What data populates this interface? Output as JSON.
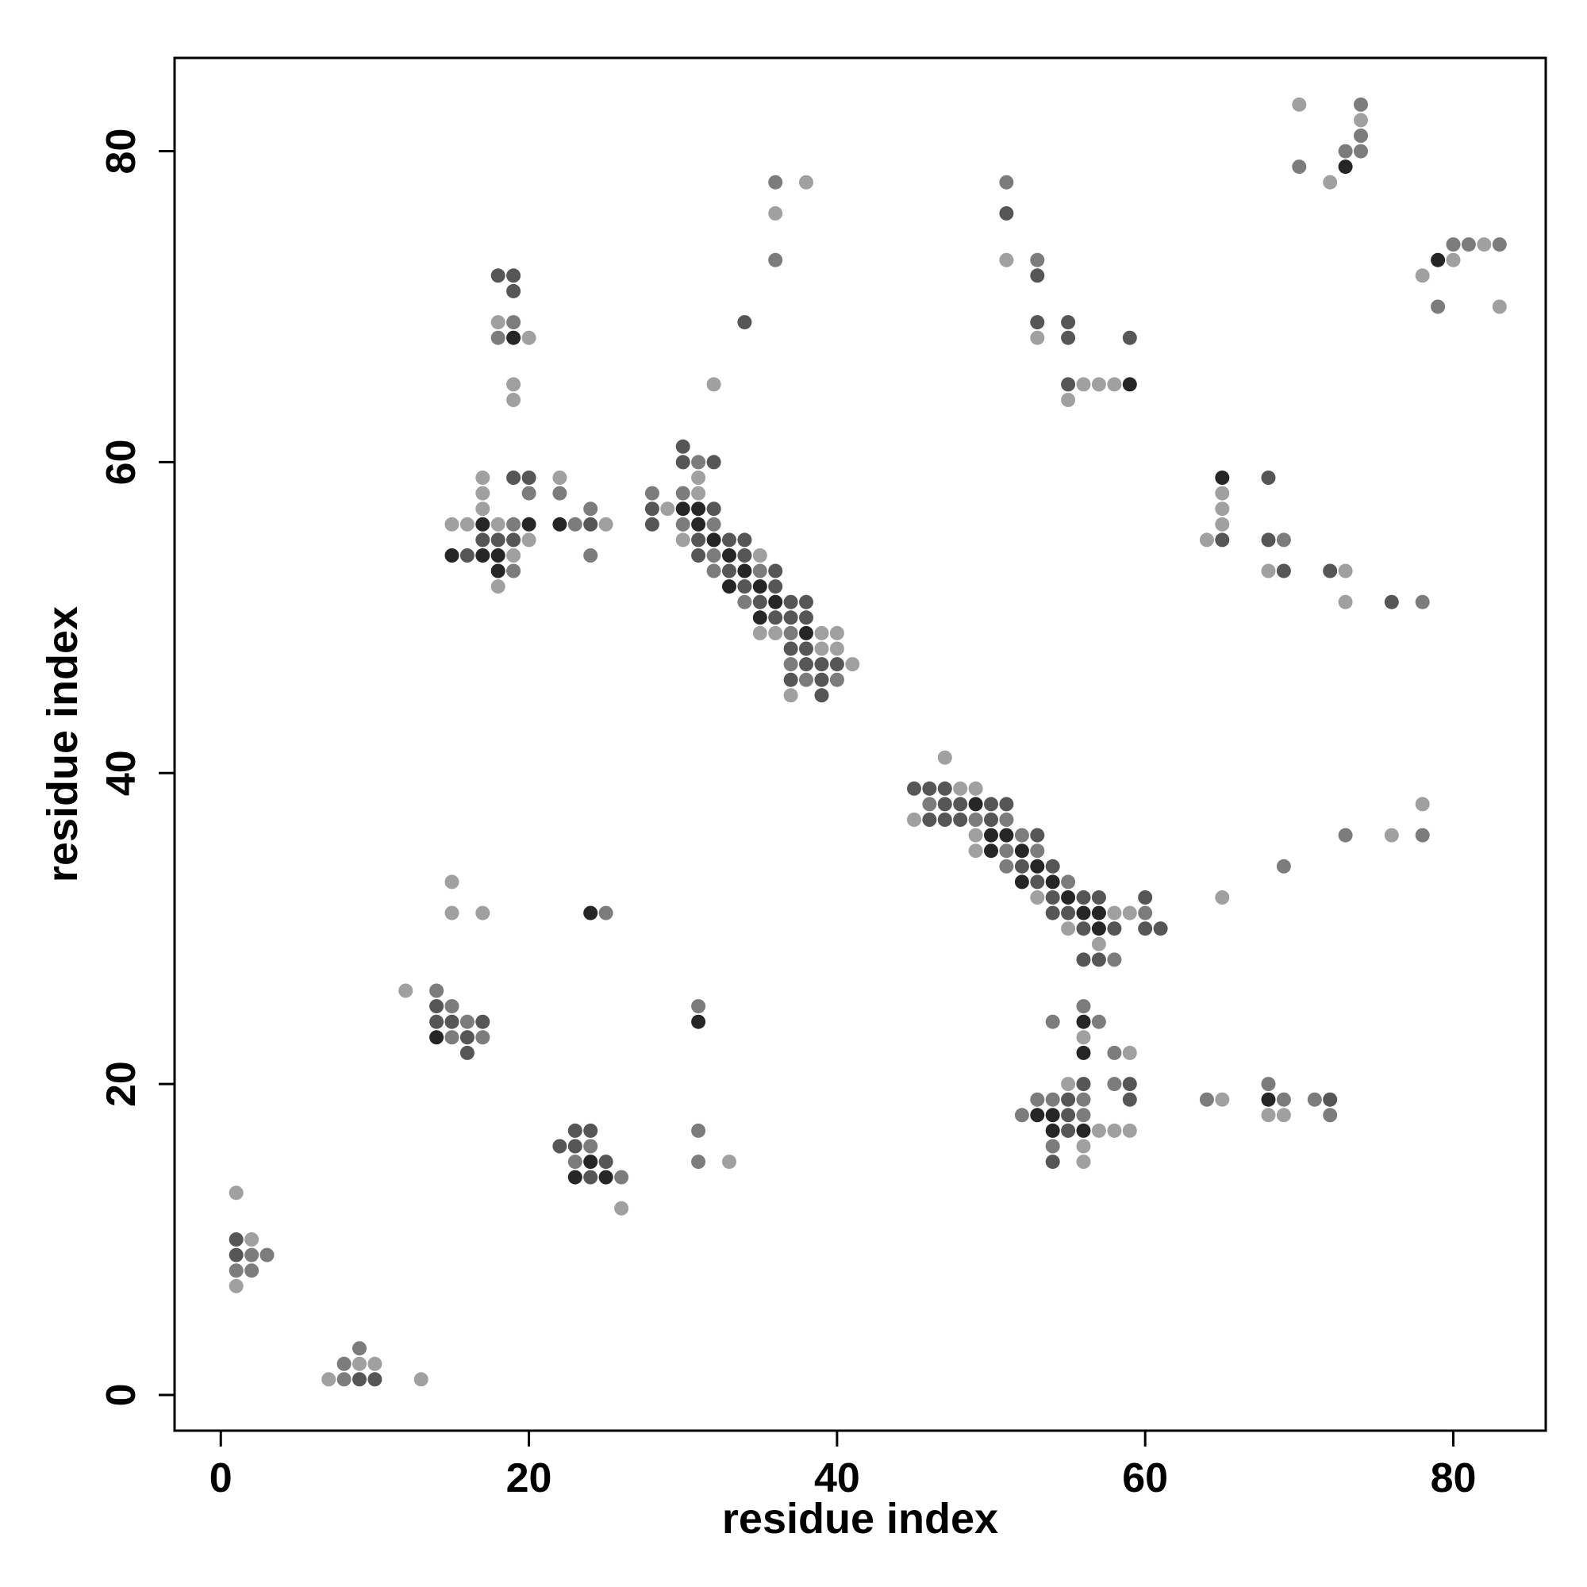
{
  "chart_data": {
    "type": "scatter",
    "title": "",
    "xlabel": "residue index",
    "ylabel": "residue index",
    "xlim": [
      -3,
      86
    ],
    "ylim": [
      -2.3,
      86
    ],
    "xticks": [
      0,
      20,
      40,
      60,
      80
    ],
    "yticks": [
      0,
      20,
      40,
      60,
      80
    ],
    "grid": false,
    "legend": "none",
    "shades": {
      "1": "#a0a0a0",
      "2": "#7c7c7c",
      "3": "#565656",
      "4": "#262626"
    },
    "points": [
      [
        1,
        13,
        1
      ],
      [
        1,
        10,
        3
      ],
      [
        2,
        10,
        1
      ],
      [
        1,
        9,
        3
      ],
      [
        2,
        9,
        2
      ],
      [
        3,
        9,
        2
      ],
      [
        1,
        8,
        2
      ],
      [
        2,
        8,
        2
      ],
      [
        1,
        7,
        1
      ],
      [
        9,
        3,
        2
      ],
      [
        8,
        2,
        2
      ],
      [
        9,
        2,
        1
      ],
      [
        10,
        2,
        1
      ],
      [
        7,
        1,
        1
      ],
      [
        8,
        1,
        2
      ],
      [
        9,
        1,
        3
      ],
      [
        10,
        1,
        3
      ],
      [
        13,
        1,
        1
      ],
      [
        12,
        26,
        1
      ],
      [
        14,
        26,
        2
      ],
      [
        14,
        25,
        3
      ],
      [
        15,
        25,
        2
      ],
      [
        14,
        24,
        3
      ],
      [
        15,
        24,
        3
      ],
      [
        16,
        24,
        2
      ],
      [
        17,
        24,
        3
      ],
      [
        14,
        23,
        4
      ],
      [
        15,
        23,
        2
      ],
      [
        16,
        23,
        3
      ],
      [
        17,
        23,
        2
      ],
      [
        16,
        22,
        3
      ],
      [
        15,
        33,
        1
      ],
      [
        15,
        31,
        1
      ],
      [
        17,
        31,
        1
      ],
      [
        24,
        31,
        4
      ],
      [
        25,
        31,
        2
      ],
      [
        31,
        25,
        2
      ],
      [
        31,
        24,
        4
      ],
      [
        22,
        16,
        3
      ],
      [
        23,
        17,
        3
      ],
      [
        24,
        17,
        3
      ],
      [
        23,
        16,
        3
      ],
      [
        24,
        16,
        2
      ],
      [
        23,
        15,
        2
      ],
      [
        24,
        15,
        4
      ],
      [
        25,
        15,
        3
      ],
      [
        23,
        14,
        4
      ],
      [
        24,
        14,
        3
      ],
      [
        25,
        14,
        4
      ],
      [
        26,
        14,
        2
      ],
      [
        26,
        12,
        1
      ],
      [
        31,
        17,
        2
      ],
      [
        31,
        15,
        2
      ],
      [
        33,
        15,
        1
      ],
      [
        18,
        72,
        3
      ],
      [
        19,
        72,
        3
      ],
      [
        19,
        71,
        3
      ],
      [
        18,
        69,
        1
      ],
      [
        19,
        69,
        2
      ],
      [
        18,
        68,
        2
      ],
      [
        19,
        68,
        4
      ],
      [
        20,
        68,
        1
      ],
      [
        19,
        65,
        1
      ],
      [
        19,
        64,
        1
      ],
      [
        17,
        59,
        1
      ],
      [
        19,
        59,
        3
      ],
      [
        20,
        59,
        3
      ],
      [
        22,
        59,
        1
      ],
      [
        17,
        58,
        1
      ],
      [
        20,
        58,
        2
      ],
      [
        22,
        58,
        2
      ],
      [
        17,
        57,
        1
      ],
      [
        24,
        57,
        2
      ],
      [
        15,
        56,
        1
      ],
      [
        16,
        56,
        1
      ],
      [
        17,
        56,
        4
      ],
      [
        18,
        56,
        1
      ],
      [
        19,
        56,
        2
      ],
      [
        20,
        56,
        4
      ],
      [
        22,
        56,
        4
      ],
      [
        23,
        56,
        2
      ],
      [
        24,
        56,
        3
      ],
      [
        25,
        56,
        1
      ],
      [
        17,
        55,
        3
      ],
      [
        18,
        55,
        3
      ],
      [
        19,
        55,
        3
      ],
      [
        20,
        55,
        1
      ],
      [
        15,
        54,
        4
      ],
      [
        16,
        54,
        3
      ],
      [
        17,
        54,
        4
      ],
      [
        18,
        54,
        4
      ],
      [
        19,
        54,
        1
      ],
      [
        24,
        54,
        2
      ],
      [
        18,
        53,
        4
      ],
      [
        19,
        53,
        2
      ],
      [
        18,
        52,
        1
      ],
      [
        36,
        78,
        2
      ],
      [
        38,
        78,
        1
      ],
      [
        36,
        76,
        1
      ],
      [
        36,
        73,
        2
      ],
      [
        34,
        69,
        3
      ],
      [
        32,
        65,
        1
      ],
      [
        30,
        61,
        3
      ],
      [
        30,
        60,
        3
      ],
      [
        31,
        60,
        2
      ],
      [
        32,
        60,
        3
      ],
      [
        31,
        59,
        1
      ],
      [
        28,
        58,
        2
      ],
      [
        30,
        58,
        2
      ],
      [
        31,
        58,
        1
      ],
      [
        28,
        57,
        3
      ],
      [
        29,
        57,
        1
      ],
      [
        30,
        57,
        4
      ],
      [
        31,
        57,
        4
      ],
      [
        32,
        57,
        3
      ],
      [
        28,
        56,
        3
      ],
      [
        30,
        56,
        2
      ],
      [
        31,
        56,
        4
      ],
      [
        32,
        56,
        2
      ],
      [
        30,
        55,
        1
      ],
      [
        31,
        55,
        3
      ],
      [
        32,
        55,
        4
      ],
      [
        33,
        55,
        3
      ],
      [
        34,
        55,
        3
      ],
      [
        31,
        54,
        3
      ],
      [
        32,
        54,
        2
      ],
      [
        33,
        54,
        4
      ],
      [
        34,
        54,
        3
      ],
      [
        35,
        54,
        1
      ],
      [
        32,
        53,
        2
      ],
      [
        33,
        53,
        3
      ],
      [
        34,
        53,
        4
      ],
      [
        35,
        53,
        2
      ],
      [
        36,
        53,
        3
      ],
      [
        33,
        52,
        4
      ],
      [
        34,
        52,
        3
      ],
      [
        35,
        52,
        4
      ],
      [
        36,
        52,
        3
      ],
      [
        34,
        51,
        2
      ],
      [
        35,
        51,
        3
      ],
      [
        36,
        51,
        4
      ],
      [
        37,
        51,
        3
      ],
      [
        38,
        51,
        3
      ],
      [
        35,
        50,
        4
      ],
      [
        36,
        50,
        3
      ],
      [
        37,
        50,
        3
      ],
      [
        38,
        50,
        3
      ],
      [
        35,
        49,
        1
      ],
      [
        36,
        49,
        1
      ],
      [
        37,
        49,
        2
      ],
      [
        38,
        49,
        4
      ],
      [
        39,
        49,
        1
      ],
      [
        40,
        49,
        1
      ],
      [
        37,
        48,
        3
      ],
      [
        38,
        48,
        3
      ],
      [
        39,
        48,
        1
      ],
      [
        40,
        48,
        1
      ],
      [
        37,
        47,
        2
      ],
      [
        38,
        47,
        3
      ],
      [
        39,
        47,
        3
      ],
      [
        40,
        47,
        3
      ],
      [
        41,
        47,
        1
      ],
      [
        37,
        46,
        3
      ],
      [
        38,
        46,
        2
      ],
      [
        39,
        46,
        3
      ],
      [
        40,
        46,
        2
      ],
      [
        37,
        45,
        1
      ],
      [
        39,
        45,
        3
      ],
      [
        47,
        41,
        1
      ],
      [
        45,
        39,
        3
      ],
      [
        46,
        39,
        3
      ],
      [
        47,
        39,
        3
      ],
      [
        48,
        39,
        1
      ],
      [
        49,
        39,
        1
      ],
      [
        46,
        38,
        2
      ],
      [
        47,
        38,
        3
      ],
      [
        48,
        38,
        3
      ],
      [
        49,
        38,
        4
      ],
      [
        50,
        38,
        3
      ],
      [
        51,
        38,
        3
      ],
      [
        45,
        37,
        1
      ],
      [
        46,
        37,
        3
      ],
      [
        47,
        37,
        3
      ],
      [
        48,
        37,
        3
      ],
      [
        49,
        37,
        2
      ],
      [
        50,
        37,
        3
      ],
      [
        51,
        37,
        2
      ],
      [
        49,
        36,
        1
      ],
      [
        50,
        36,
        4
      ],
      [
        51,
        36,
        4
      ],
      [
        52,
        36,
        2
      ],
      [
        53,
        36,
        3
      ],
      [
        49,
        35,
        1
      ],
      [
        50,
        35,
        4
      ],
      [
        51,
        35,
        2
      ],
      [
        52,
        35,
        4
      ],
      [
        53,
        35,
        2
      ],
      [
        51,
        34,
        2
      ],
      [
        52,
        34,
        3
      ],
      [
        53,
        34,
        4
      ],
      [
        54,
        34,
        3
      ],
      [
        52,
        33,
        4
      ],
      [
        53,
        33,
        3
      ],
      [
        54,
        33,
        4
      ],
      [
        55,
        33,
        2
      ],
      [
        53,
        32,
        1
      ],
      [
        54,
        32,
        3
      ],
      [
        55,
        32,
        4
      ],
      [
        56,
        32,
        3
      ],
      [
        57,
        32,
        3
      ],
      [
        60,
        32,
        3
      ],
      [
        54,
        31,
        3
      ],
      [
        55,
        31,
        3
      ],
      [
        56,
        31,
        4
      ],
      [
        57,
        31,
        4
      ],
      [
        58,
        31,
        1
      ],
      [
        59,
        31,
        1
      ],
      [
        60,
        31,
        2
      ],
      [
        55,
        30,
        1
      ],
      [
        56,
        30,
        3
      ],
      [
        57,
        30,
        4
      ],
      [
        58,
        30,
        3
      ],
      [
        60,
        30,
        3
      ],
      [
        61,
        30,
        3
      ],
      [
        57,
        29,
        1
      ],
      [
        56,
        28,
        3
      ],
      [
        57,
        28,
        3
      ],
      [
        58,
        28,
        2
      ],
      [
        51,
        78,
        2
      ],
      [
        51,
        76,
        3
      ],
      [
        51,
        73,
        1
      ],
      [
        53,
        73,
        2
      ],
      [
        53,
        72,
        3
      ],
      [
        53,
        69,
        3
      ],
      [
        55,
        69,
        3
      ],
      [
        53,
        68,
        1
      ],
      [
        55,
        68,
        3
      ],
      [
        59,
        68,
        3
      ],
      [
        55,
        65,
        3
      ],
      [
        56,
        65,
        1
      ],
      [
        57,
        65,
        1
      ],
      [
        58,
        65,
        1
      ],
      [
        59,
        65,
        4
      ],
      [
        55,
        64,
        1
      ],
      [
        54,
        24,
        2
      ],
      [
        56,
        25,
        2
      ],
      [
        56,
        24,
        4
      ],
      [
        57,
        24,
        2
      ],
      [
        56,
        23,
        1
      ],
      [
        56,
        22,
        4
      ],
      [
        58,
        22,
        2
      ],
      [
        59,
        22,
        1
      ],
      [
        55,
        20,
        1
      ],
      [
        56,
        20,
        3
      ],
      [
        58,
        20,
        2
      ],
      [
        59,
        20,
        3
      ],
      [
        53,
        19,
        2
      ],
      [
        54,
        19,
        2
      ],
      [
        55,
        19,
        3
      ],
      [
        56,
        19,
        2
      ],
      [
        59,
        19,
        3
      ],
      [
        52,
        18,
        2
      ],
      [
        53,
        18,
        4
      ],
      [
        54,
        18,
        4
      ],
      [
        55,
        18,
        3
      ],
      [
        56,
        18,
        2
      ],
      [
        54,
        17,
        4
      ],
      [
        55,
        17,
        3
      ],
      [
        56,
        17,
        4
      ],
      [
        57,
        17,
        1
      ],
      [
        58,
        17,
        1
      ],
      [
        59,
        17,
        1
      ],
      [
        54,
        16,
        2
      ],
      [
        56,
        16,
        1
      ],
      [
        54,
        15,
        3
      ],
      [
        56,
        15,
        1
      ],
      [
        70,
        83,
        1
      ],
      [
        74,
        83,
        2
      ],
      [
        74,
        82,
        1
      ],
      [
        74,
        81,
        2
      ],
      [
        73,
        80,
        2
      ],
      [
        74,
        80,
        2
      ],
      [
        73,
        79,
        4
      ],
      [
        70,
        79,
        2
      ],
      [
        72,
        78,
        1
      ],
      [
        79,
        73,
        4
      ],
      [
        80,
        73,
        1
      ],
      [
        80,
        74,
        2
      ],
      [
        81,
        74,
        2
      ],
      [
        82,
        74,
        1
      ],
      [
        83,
        74,
        2
      ],
      [
        78,
        72,
        1
      ],
      [
        79,
        70,
        2
      ],
      [
        83,
        70,
        1
      ],
      [
        65,
        59,
        4
      ],
      [
        68,
        59,
        3
      ],
      [
        65,
        58,
        1
      ],
      [
        65,
        57,
        1
      ],
      [
        65,
        56,
        1
      ],
      [
        64,
        55,
        1
      ],
      [
        65,
        55,
        3
      ],
      [
        68,
        55,
        3
      ],
      [
        69,
        55,
        2
      ],
      [
        68,
        53,
        1
      ],
      [
        69,
        53,
        3
      ],
      [
        72,
        53,
        3
      ],
      [
        73,
        53,
        1
      ],
      [
        73,
        51,
        1
      ],
      [
        76,
        51,
        3
      ],
      [
        78,
        51,
        2
      ],
      [
        78,
        38,
        1
      ],
      [
        73,
        36,
        2
      ],
      [
        76,
        36,
        1
      ],
      [
        78,
        36,
        2
      ],
      [
        69,
        34,
        2
      ],
      [
        65,
        32,
        1
      ],
      [
        64,
        19,
        2
      ],
      [
        65,
        19,
        1
      ],
      [
        68,
        20,
        2
      ],
      [
        68,
        19,
        4
      ],
      [
        69,
        19,
        2
      ],
      [
        71,
        19,
        2
      ],
      [
        72,
        19,
        3
      ],
      [
        68,
        18,
        1
      ],
      [
        69,
        18,
        1
      ],
      [
        72,
        18,
        2
      ]
    ]
  }
}
